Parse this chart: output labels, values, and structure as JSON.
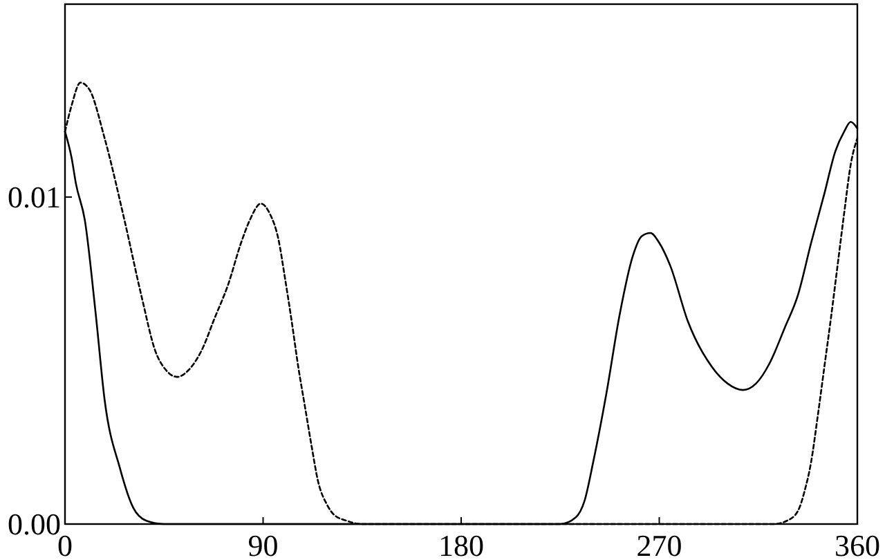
{
  "chart_data": {
    "type": "line",
    "xlim": [
      0,
      360
    ],
    "xticks": [
      0,
      90,
      180,
      270,
      360
    ],
    "ylim": [
      0,
      0.0159
    ],
    "yticks": [
      {
        "value": 0,
        "label": "0.00"
      },
      {
        "value": 0.01,
        "label": "0.01"
      }
    ],
    "series": [
      {
        "color": "#000000",
        "line_style": "solid",
        "x": [
          0,
          3,
          5,
          9,
          14,
          18,
          25,
          31,
          37,
          45,
          225,
          232,
          236,
          240,
          246,
          252,
          258,
          262,
          266,
          270,
          275,
          283,
          294,
          301,
          308,
          314,
          320,
          327,
          333,
          339,
          345,
          350,
          354,
          357,
          360
        ],
        "values": [
          0.012,
          0.0112,
          0.0104,
          0.0093,
          0.0064,
          0.0038,
          0.0017,
          0.0005,
          0.0001,
          0,
          0,
          0.0002,
          0.0007,
          0.0019,
          0.004,
          0.0064,
          0.0082,
          0.0088,
          0.0089,
          0.0086,
          0.0079,
          0.0062,
          0.0048,
          0.0043,
          0.0041,
          0.0043,
          0.0049,
          0.006,
          0.007,
          0.0086,
          0.0101,
          0.0114,
          0.012,
          0.0123,
          0.0121
        ]
      },
      {
        "color": "#000000",
        "line_style": "dashed",
        "x": [
          0,
          3,
          7,
          11,
          18,
          27,
          35,
          41,
          46,
          51,
          56,
          62,
          68,
          74,
          80,
          84,
          89,
          93,
          97,
          100,
          103,
          106,
          109,
          112,
          115,
          119,
          122,
          128,
          135,
          322,
          328,
          333,
          336,
          339,
          342,
          345,
          348,
          351,
          354,
          357,
          360
        ],
        "values": [
          0.012,
          0.0128,
          0.0135,
          0.0133,
          0.0118,
          0.0093,
          0.0069,
          0.0053,
          0.0047,
          0.0045,
          0.0047,
          0.0053,
          0.0063,
          0.0073,
          0.0086,
          0.0093,
          0.0098,
          0.0095,
          0.0087,
          0.0075,
          0.0062,
          0.0048,
          0.0036,
          0.0024,
          0.0013,
          0.0006,
          0.0003,
          0.0001,
          0,
          0,
          0.0001,
          0.0004,
          0.001,
          0.0019,
          0.0033,
          0.0048,
          0.0063,
          0.0079,
          0.0095,
          0.011,
          0.0118
        ]
      }
    ]
  }
}
